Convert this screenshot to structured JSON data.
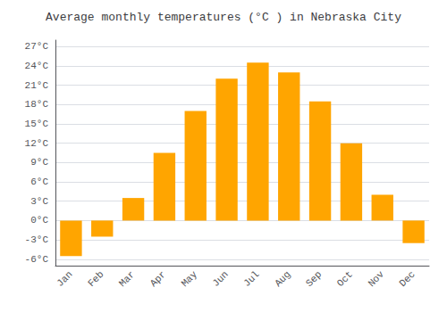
{
  "chart_data": {
    "type": "bar",
    "title": "Average monthly temperatures (°C ) in Nebraska City",
    "categories": [
      "Jan",
      "Feb",
      "Mar",
      "Apr",
      "May",
      "Jun",
      "Jul",
      "Aug",
      "Sep",
      "Oct",
      "Nov",
      "Dec"
    ],
    "values": [
      -5.5,
      -2.5,
      3.5,
      10.5,
      17.0,
      22.0,
      24.5,
      23.0,
      18.5,
      12.0,
      4.0,
      -3.5
    ],
    "color": "#FFA500",
    "ylim": [
      -7,
      28
    ],
    "yticks": [
      {
        "value": -6,
        "label": "-6°C"
      },
      {
        "value": -3,
        "label": "-3°C"
      },
      {
        "value": 0,
        "label": "0°C"
      },
      {
        "value": 3,
        "label": "3°C"
      },
      {
        "value": 6,
        "label": "6°C"
      },
      {
        "value": 9,
        "label": "9°C"
      },
      {
        "value": 12,
        "label": "12°C"
      },
      {
        "value": 15,
        "label": "15°C"
      },
      {
        "value": 18,
        "label": "18°C"
      },
      {
        "value": 21,
        "label": "21°C"
      },
      {
        "value": 24,
        "label": "24°C"
      },
      {
        "value": 27,
        "label": "27°C"
      }
    ],
    "grid": true
  }
}
